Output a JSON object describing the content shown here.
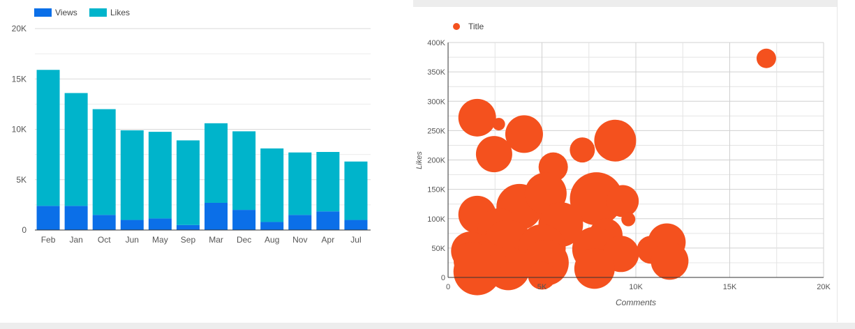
{
  "chart_data": [
    {
      "type": "bar",
      "stacked": true,
      "categories": [
        "Feb",
        "Jan",
        "Oct",
        "Jun",
        "May",
        "Sep",
        "Mar",
        "Dec",
        "Aug",
        "Nov",
        "Apr",
        "Jul"
      ],
      "series": [
        {
          "name": "Views",
          "color": "#0b6fe8",
          "values": [
            2400,
            2400,
            1500,
            1000,
            1150,
            500,
            2700,
            2000,
            800,
            1500,
            1850,
            1000
          ]
        },
        {
          "name": "Likes",
          "color": "#00b4cb",
          "values": [
            13500,
            11200,
            10500,
            8900,
            8600,
            8400,
            7900,
            7800,
            7300,
            6200,
            5900,
            5800
          ]
        }
      ],
      "ylim": [
        0,
        20000
      ],
      "yticks": [
        0,
        5000,
        10000,
        15000,
        20000
      ],
      "ytick_labels": [
        "0",
        "5K",
        "10K",
        "15K",
        "20K"
      ],
      "legend": "top-left",
      "grid": true
    },
    {
      "type": "scatter",
      "series": [
        {
          "name": "Title",
          "color": "#f4511e",
          "points": [
            {
              "x": 16950,
              "y": 373000,
              "size": 14
            },
            {
              "x": 1550,
              "y": 272000,
              "size": 27
            },
            {
              "x": 2700,
              "y": 261000,
              "size": 9
            },
            {
              "x": 4050,
              "y": 244000,
              "size": 27
            },
            {
              "x": 2450,
              "y": 210000,
              "size": 26
            },
            {
              "x": 7150,
              "y": 217000,
              "size": 18
            },
            {
              "x": 8900,
              "y": 233000,
              "size": 30
            },
            {
              "x": 5600,
              "y": 188000,
              "size": 21
            },
            {
              "x": 1550,
              "y": 107000,
              "size": 27
            },
            {
              "x": 3800,
              "y": 120000,
              "size": 33
            },
            {
              "x": 7900,
              "y": 134000,
              "size": 38
            },
            {
              "x": 5200,
              "y": 143000,
              "size": 30
            },
            {
              "x": 9300,
              "y": 130000,
              "size": 23
            },
            {
              "x": 9600,
              "y": 99000,
              "size": 10
            },
            {
              "x": 2700,
              "y": 82000,
              "size": 30
            },
            {
              "x": 6000,
              "y": 90000,
              "size": 32
            },
            {
              "x": 8400,
              "y": 72000,
              "size": 24
            },
            {
              "x": 1200,
              "y": 45000,
              "size": 28
            },
            {
              "x": 3200,
              "y": 55000,
              "size": 36
            },
            {
              "x": 5000,
              "y": 50000,
              "size": 34
            },
            {
              "x": 7800,
              "y": 48000,
              "size": 32
            },
            {
              "x": 11650,
              "y": 60000,
              "size": 27
            },
            {
              "x": 10800,
              "y": 47000,
              "size": 20
            },
            {
              "x": 11800,
              "y": 28000,
              "size": 27
            },
            {
              "x": 9200,
              "y": 40000,
              "size": 26
            },
            {
              "x": 7800,
              "y": 15000,
              "size": 29
            },
            {
              "x": 5200,
              "y": 25000,
              "size": 33
            },
            {
              "x": 3200,
              "y": 15000,
              "size": 31
            },
            {
              "x": 1900,
              "y": 22000,
              "size": 33
            },
            {
              "x": 1550,
              "y": 10000,
              "size": 34
            },
            {
              "x": 5000,
              "y": 3000,
              "size": 20
            },
            {
              "x": 1300,
              "y": 28000,
              "size": 27
            }
          ]
        }
      ],
      "xlabel": "Comments",
      "ylabel": "Likes",
      "xlim": [
        0,
        20000
      ],
      "ylim": [
        0,
        400000
      ],
      "xticks": [
        0,
        5000,
        10000,
        15000,
        20000
      ],
      "xtick_labels": [
        "0",
        "5K",
        "10K",
        "15K",
        "20K"
      ],
      "yticks": [
        0,
        50000,
        100000,
        150000,
        200000,
        250000,
        300000,
        350000,
        400000
      ],
      "ytick_labels": [
        "0",
        "50K",
        "100K",
        "150K",
        "200K",
        "250K",
        "300K",
        "350K",
        "400K"
      ],
      "legend": "top-left",
      "grid": true
    }
  ]
}
